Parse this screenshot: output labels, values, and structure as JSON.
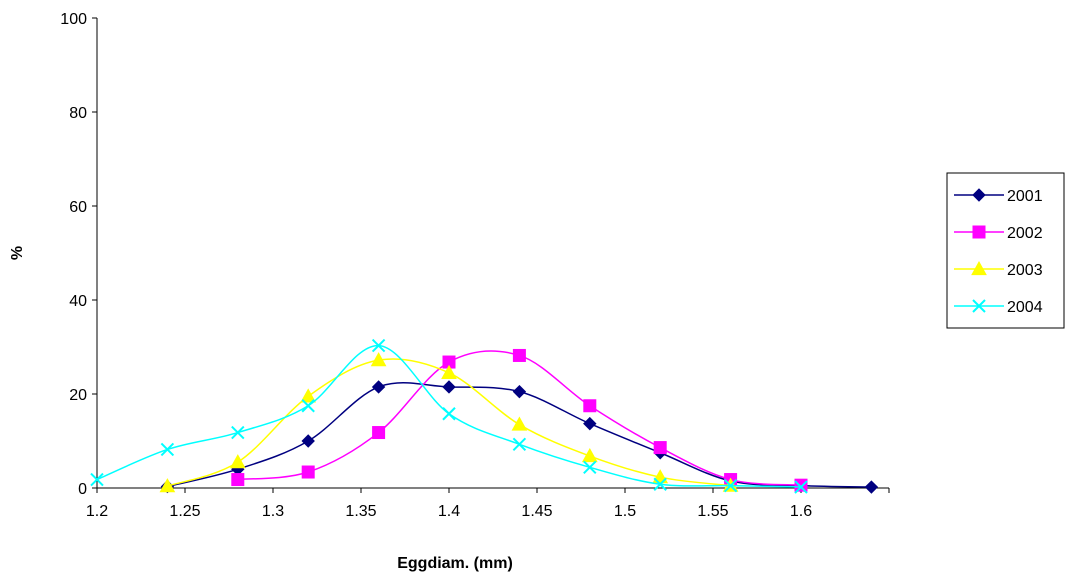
{
  "chart_data": {
    "type": "line",
    "title": "",
    "xlabel": "Eggdiam. (mm)",
    "ylabel": "%",
    "xlim": [
      1.2,
      1.65
    ],
    "ylim": [
      0,
      100
    ],
    "x_ticks": [
      "1.2",
      "1.25",
      "1.3",
      "1.35",
      "1.4",
      "1.45",
      "1.5",
      "1.55",
      "1.6"
    ],
    "y_ticks": [
      "0",
      "20",
      "40",
      "60",
      "80",
      "100"
    ],
    "grid": false,
    "legend_position": "right",
    "series": [
      {
        "name": "2001",
        "color": "#000080",
        "marker": "diamond",
        "points": [
          [
            1.24,
            0.3
          ],
          [
            1.28,
            4
          ],
          [
            1.32,
            10
          ],
          [
            1.36,
            21.5
          ],
          [
            1.4,
            21.5
          ],
          [
            1.44,
            20.5
          ],
          [
            1.48,
            13.7
          ],
          [
            1.52,
            7.5
          ],
          [
            1.56,
            1.5
          ],
          [
            1.6,
            0.5
          ],
          [
            1.64,
            0.2
          ]
        ]
      },
      {
        "name": "2002",
        "color": "#FF00FF",
        "marker": "square",
        "points": [
          [
            1.28,
            1.8
          ],
          [
            1.32,
            3.4
          ],
          [
            1.36,
            11.8
          ],
          [
            1.4,
            26.8
          ],
          [
            1.44,
            28.2
          ],
          [
            1.48,
            17.5
          ],
          [
            1.52,
            8.6
          ],
          [
            1.56,
            1.8
          ],
          [
            1.6,
            0.6
          ]
        ]
      },
      {
        "name": "2003",
        "color": "#FFFF00",
        "marker": "triangle",
        "points": [
          [
            1.24,
            0.4
          ],
          [
            1.28,
            5.5
          ],
          [
            1.32,
            19.5
          ],
          [
            1.36,
            27.2
          ],
          [
            1.4,
            24.5
          ],
          [
            1.44,
            13.5
          ],
          [
            1.48,
            6.8
          ],
          [
            1.52,
            2.3
          ],
          [
            1.56,
            0.5
          ]
        ]
      },
      {
        "name": "2004",
        "color": "#00FFFF",
        "marker": "x",
        "points": [
          [
            1.2,
            1.8
          ],
          [
            1.24,
            8.2
          ],
          [
            1.28,
            11.8
          ],
          [
            1.32,
            17.5
          ],
          [
            1.36,
            30.3
          ],
          [
            1.4,
            15.8
          ],
          [
            1.44,
            9.3
          ],
          [
            1.48,
            4.4
          ],
          [
            1.52,
            0.8
          ],
          [
            1.56,
            0.5
          ],
          [
            1.6,
            0.2
          ]
        ]
      }
    ]
  }
}
